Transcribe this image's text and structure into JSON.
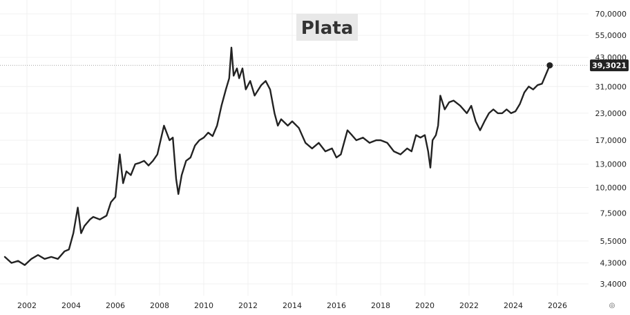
{
  "chart_data": {
    "type": "line",
    "title": "Plata",
    "xlabel": "",
    "ylabel": "",
    "y_scale": "log",
    "grid": true,
    "legend": "none",
    "x_ticks": [
      "2002",
      "2004",
      "2006",
      "2008",
      "2010",
      "2012",
      "2014",
      "2016",
      "2018",
      "2020",
      "2022",
      "2024",
      "2026"
    ],
    "y_ticks": [
      "70,0000",
      "55,0000",
      "43,0000",
      "31,0000",
      "23,0000",
      "17,0000",
      "13,0000",
      "10,0000",
      "7,5000",
      "5,5000",
      "4,3000",
      "3,4000"
    ],
    "y_tick_values": [
      70,
      55,
      43,
      31,
      23,
      17,
      13,
      10,
      7.5,
      5.5,
      4.3,
      3.4
    ],
    "last_value_label": "39,3021",
    "last_value": 39.3021,
    "series": [
      {
        "color": "#222222",
        "x": [
          2001.0,
          2001.3,
          2001.6,
          2001.9,
          2002.2,
          2002.5,
          2002.8,
          2003.1,
          2003.4,
          2003.7,
          2003.9,
          2004.1,
          2004.3,
          2004.45,
          2004.6,
          2004.85,
          2005.0,
          2005.3,
          2005.6,
          2005.8,
          2006.0,
          2006.2,
          2006.35,
          2006.5,
          2006.7,
          2006.9,
          2007.1,
          2007.3,
          2007.5,
          2007.7,
          2007.9,
          2008.1,
          2008.2,
          2008.45,
          2008.6,
          2008.75,
          2008.85,
          2009.0,
          2009.2,
          2009.4,
          2009.6,
          2009.8,
          2010.0,
          2010.2,
          2010.4,
          2010.6,
          2010.8,
          2011.0,
          2011.15,
          2011.25,
          2011.35,
          2011.5,
          2011.6,
          2011.75,
          2011.9,
          2012.1,
          2012.3,
          2012.6,
          2012.8,
          2013.0,
          2013.2,
          2013.35,
          2013.5,
          2013.8,
          2014.0,
          2014.3,
          2014.6,
          2014.9,
          2015.2,
          2015.5,
          2015.8,
          2016.0,
          2016.2,
          2016.5,
          2016.7,
          2016.9,
          2017.2,
          2017.5,
          2017.8,
          2018.0,
          2018.3,
          2018.6,
          2018.9,
          2019.2,
          2019.4,
          2019.6,
          2019.8,
          2020.0,
          2020.15,
          2020.25,
          2020.35,
          2020.5,
          2020.6,
          2020.7,
          2020.9,
          2021.1,
          2021.3,
          2021.6,
          2021.9,
          2022.1,
          2022.3,
          2022.5,
          2022.7,
          2022.9,
          2023.1,
          2023.3,
          2023.5,
          2023.7,
          2023.9,
          2024.1,
          2024.3,
          2024.5,
          2024.7,
          2024.9,
          2025.1,
          2025.3,
          2025.5,
          2025.65
        ],
        "y": [
          4.6,
          4.3,
          4.4,
          4.2,
          4.5,
          4.7,
          4.5,
          4.6,
          4.5,
          4.9,
          5.0,
          6.0,
          8.0,
          6.0,
          6.5,
          7.0,
          7.2,
          7.0,
          7.3,
          8.5,
          9.0,
          14.5,
          10.5,
          12.0,
          11.5,
          13.0,
          13.2,
          13.5,
          12.8,
          13.5,
          14.5,
          18.0,
          20.0,
          17.0,
          17.5,
          11.0,
          9.3,
          11.5,
          13.5,
          14.0,
          16.0,
          17.0,
          17.5,
          18.5,
          17.8,
          20.0,
          25.0,
          30.0,
          34.0,
          48.0,
          35.0,
          38.0,
          34.0,
          38.0,
          30.0,
          33.0,
          28.0,
          31.5,
          33.0,
          30.0,
          23.0,
          20.0,
          21.5,
          20.0,
          21.0,
          19.5,
          16.5,
          15.5,
          16.5,
          15.0,
          15.5,
          14.0,
          14.5,
          19.0,
          18.0,
          17.0,
          17.5,
          16.5,
          17.0,
          17.0,
          16.5,
          15.0,
          14.5,
          15.5,
          15.0,
          18.0,
          17.5,
          18.0,
          15.0,
          12.5,
          17.0,
          18.0,
          20.0,
          28.0,
          24.0,
          26.0,
          26.5,
          25.0,
          23.0,
          25.0,
          21.0,
          19.0,
          21.0,
          23.0,
          24.0,
          23.0,
          23.0,
          24.0,
          23.0,
          23.5,
          25.5,
          29.0,
          31.0,
          30.0,
          31.5,
          32.0,
          36.0,
          39.3021
        ]
      }
    ]
  }
}
